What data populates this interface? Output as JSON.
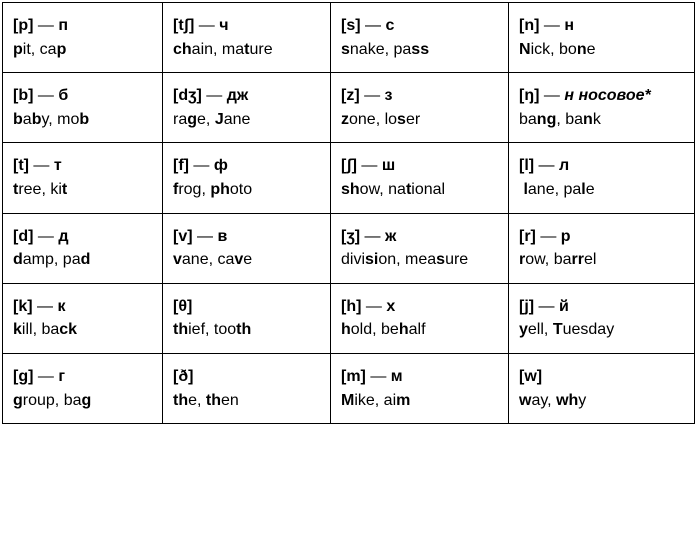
{
  "rows": [
    [
      {
        "sym": "[p]",
        "dash": "—",
        "ru": "п",
        "ex": "<b>p</b>it, ca<b>p</b>"
      },
      {
        "sym": "[tʃ]",
        "dash": "—",
        "ru": "ч",
        "ex": "<b>ch</b>ain, ma<b>t</b>ure"
      },
      {
        "sym": "[s]",
        "dash": "—",
        "ru": "с",
        "ex": "<b>s</b>nake, pa<b>ss</b>"
      },
      {
        "sym": "[n]",
        "dash": "—",
        "ru": "н",
        "ex": "<b>N</b>ick, bo<b>n</b>e"
      }
    ],
    [
      {
        "sym": "[b]",
        "dash": "—",
        "ru": "б",
        "ex": "<b>b</b>a<b>b</b>y, mo<b>b</b>"
      },
      {
        "sym": "[dʒ]",
        "dash": "—",
        "ru": "дж",
        "ex": "ra<b>g</b>e, <b>J</b>ane"
      },
      {
        "sym": "[z]",
        "dash": "—",
        "ru": "з",
        "ex": "<b>z</b>one, lo<b>s</b>er"
      },
      {
        "sym": "[ŋ]",
        "dash": "—",
        "ru_html": "<span class='ital'>н носовое*</span>",
        "ex": "ba<b>ng</b>, ba<b>n</b>k"
      }
    ],
    [
      {
        "sym": "[t]",
        "dash": "—",
        "ru": "т",
        "ex": "<b>t</b>ree, ki<b>t</b>"
      },
      {
        "sym": "[f]",
        "dash": "—",
        "ru": "ф",
        "ex": "<b>f</b>rog, <b>ph</b>oto"
      },
      {
        "sym": "[ʃ]",
        "dash": "—",
        "ru": "ш",
        "ex": "<b>sh</b>ow, na<b>t</b>ional"
      },
      {
        "sym": "[l]",
        "dash": "—",
        "ru": "л",
        "ex": "&nbsp;<b>l</b>ane, pa<b>l</b>e"
      }
    ],
    [
      {
        "sym": "[d]",
        "dash": "—",
        "ru": "д",
        "ex": "<b>d</b>amp, pa<b>d</b>"
      },
      {
        "sym": "[v]",
        "dash": "—",
        "ru": "в",
        "ex": "<b>v</b>ane, ca<b>v</b>e"
      },
      {
        "sym": "[ʒ]",
        "dash": "—",
        "ru": "ж",
        "ex": "divi<b>si</b>on, mea<b>s</b>ure"
      },
      {
        "sym": "[r]",
        "dash": "—",
        "ru": "р",
        "ex": "<b>r</b>ow, ba<b>rr</b>el"
      }
    ],
    [
      {
        "sym": "[k]",
        "dash": "—",
        "ru": "к",
        "ex": "<b>k</b>ill, ba<b>ck</b>"
      },
      {
        "sym": "[θ]",
        "dash": "",
        "ru": "",
        "ex": "<b>th</b>ief, too<b>th</b>"
      },
      {
        "sym": "[h]",
        "dash": "—",
        "ru": "х",
        "ex": "<b>h</b>old, be<b>h</b>alf"
      },
      {
        "sym": "[j]",
        "dash": "—",
        "ru": "й",
        "ex": "<b>y</b>ell, <b>T</b>uesday"
      }
    ],
    [
      {
        "sym": "[g]",
        "dash": "—",
        "ru": "г",
        "ex": "<b>g</b>roup, ba<b>g</b>"
      },
      {
        "sym": "[ð]",
        "dash": "",
        "ru": "",
        "ex": "<b>th</b>e, <b>th</b>en"
      },
      {
        "sym": "[m]",
        "dash": "—",
        "ru": "м",
        "ex": "<b>M</b>ike, ai<b>m</b>"
      },
      {
        "sym": "[w]",
        "dash": "",
        "ru": "",
        "ex": "<b>w</b>ay, <b>wh</b>y"
      }
    ]
  ],
  "col_widths": [
    "160px",
    "168px",
    "178px",
    "186px"
  ]
}
